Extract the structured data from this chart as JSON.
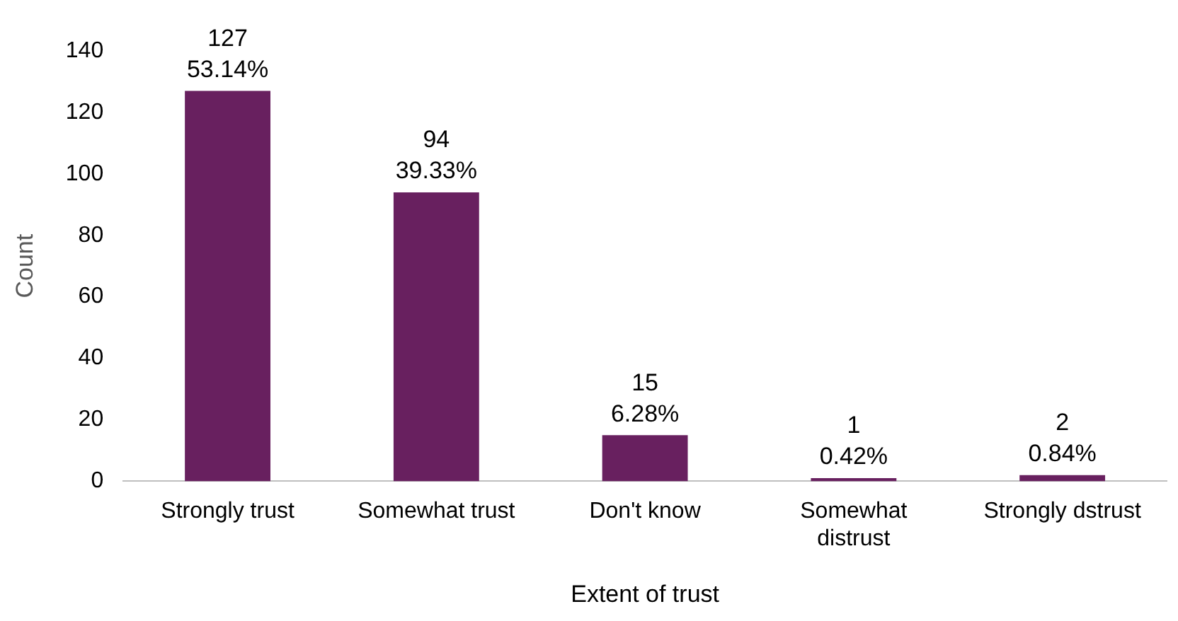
{
  "chart_data": {
    "type": "bar",
    "xlabel": "Extent of trust",
    "ylabel": "Count",
    "categories": [
      "Strongly trust",
      "Somewhat trust",
      "Don't know",
      "Somewhat distrust",
      "Strongly dstrust"
    ],
    "values": [
      127,
      94,
      15,
      1,
      2
    ],
    "color": "#68205f",
    "value_labels": [
      "127\n53.14%",
      "94\n39.33%",
      "15\n6.28%",
      "1\n0.42%",
      "2\n0.84%"
    ],
    "ylim": [
      0,
      140
    ],
    "yticks": [
      0,
      20,
      40,
      60,
      80,
      100,
      120,
      140
    ],
    "grid": false,
    "legend": false
  }
}
